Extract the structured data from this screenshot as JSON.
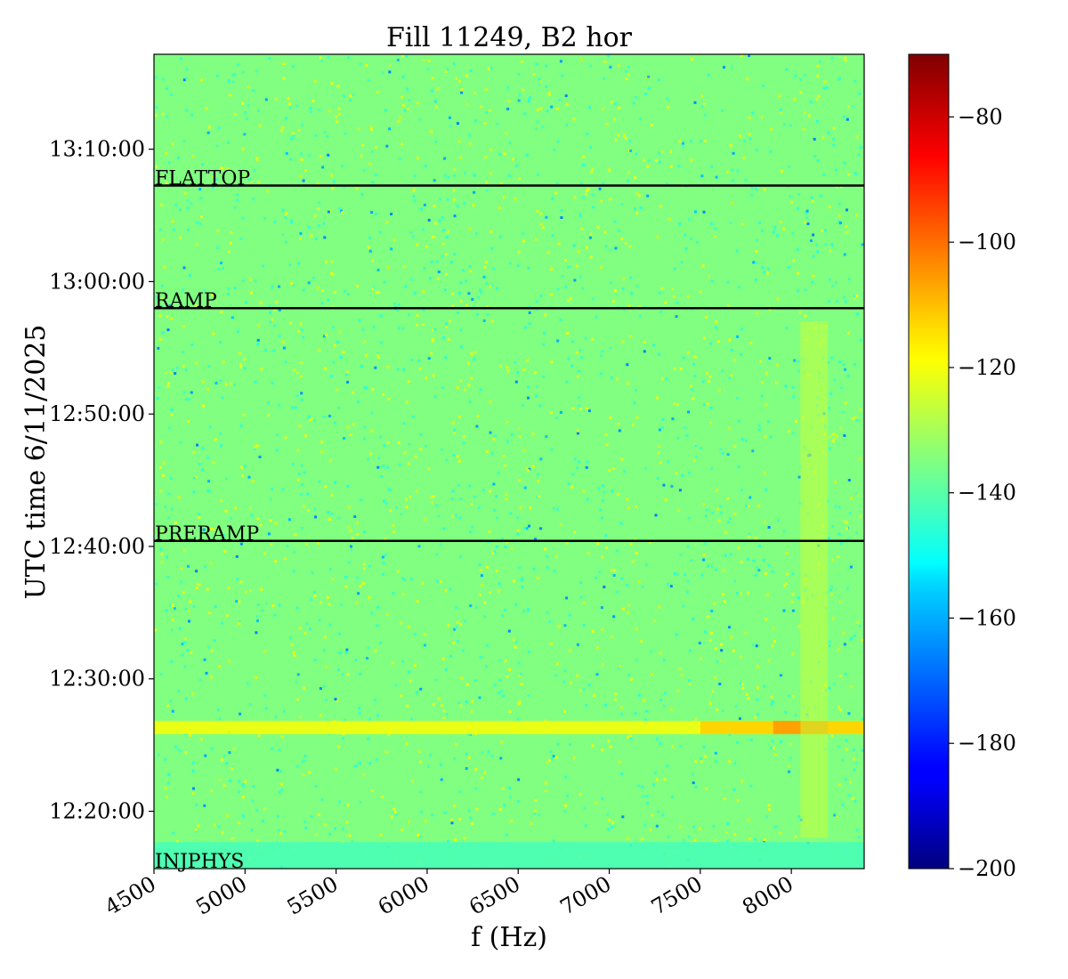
{
  "chart_data": {
    "type": "heatmap",
    "title": "Fill 11249, B2 hor",
    "xlabel": "f (Hz)",
    "ylabel": "UTC time 6/11/2025",
    "x_range": [
      4500,
      8400
    ],
    "x_ticks": [
      {
        "value": 4500,
        "label": "4500"
      },
      {
        "value": 5000,
        "label": "5000"
      },
      {
        "value": 5500,
        "label": "5500"
      },
      {
        "value": 6000,
        "label": "6000"
      },
      {
        "value": 6500,
        "label": "6500"
      },
      {
        "value": 7000,
        "label": "7000"
      },
      {
        "value": 7500,
        "label": "7500"
      },
      {
        "value": 8000,
        "label": "8000"
      }
    ],
    "y_range": [
      "12:15:40",
      "13:17:10"
    ],
    "y_ticks": [
      {
        "value": "12:20:00",
        "label": "12:20:00"
      },
      {
        "value": "12:30:00",
        "label": "12:30:00"
      },
      {
        "value": "12:40:00",
        "label": "12:40:00"
      },
      {
        "value": "12:50:00",
        "label": "12:50:00"
      },
      {
        "value": "13:00:00",
        "label": "13:00:00"
      },
      {
        "value": "13:10:00",
        "label": "13:10:00"
      }
    ],
    "colorbar": {
      "colormap": "jet",
      "range": [
        -200,
        -70
      ],
      "ticks": [
        {
          "value": -80,
          "label": "−80"
        },
        {
          "value": -100,
          "label": "−100"
        },
        {
          "value": -120,
          "label": "−120"
        },
        {
          "value": -140,
          "label": "−140"
        },
        {
          "value": -160,
          "label": "−160"
        },
        {
          "value": -180,
          "label": "−180"
        },
        {
          "value": -200,
          "label": "−200"
        }
      ]
    },
    "markers": [
      {
        "label": "INJPHYS",
        "time": "12:15:40"
      },
      {
        "label": "PRERAMP",
        "time": "12:40:25"
      },
      {
        "label": "RAMP",
        "time": "12:58:00"
      },
      {
        "label": "FLATTOP",
        "time": "13:07:15"
      }
    ],
    "background_level": -135,
    "features": [
      {
        "kind": "band",
        "t_from": "12:15:40",
        "t_to": "12:17:40",
        "f_from": 4500,
        "f_to": 8400,
        "level": -142
      },
      {
        "kind": "band",
        "t_from": "12:25:50",
        "t_to": "12:26:50",
        "f_from": 4500,
        "f_to": 8400,
        "level": -120
      },
      {
        "kind": "band",
        "t_from": "12:25:50",
        "t_to": "12:26:50",
        "f_from": 7500,
        "f_to": 8400,
        "level": -113
      },
      {
        "kind": "band",
        "t_from": "12:25:50",
        "t_to": "12:26:50",
        "f_from": 7900,
        "f_to": 8200,
        "level": -106
      },
      {
        "kind": "band",
        "t_from": "12:18:00",
        "t_to": "12:57:00",
        "f_from": 8050,
        "f_to": 8200,
        "level": -126
      }
    ]
  }
}
